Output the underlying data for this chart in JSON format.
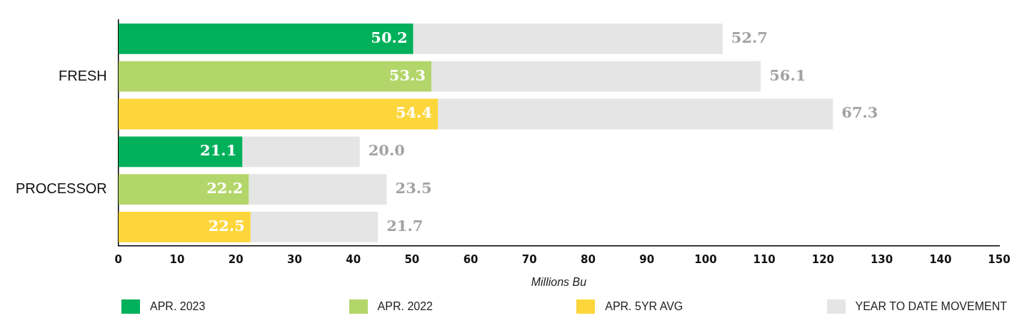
{
  "chart_data": {
    "type": "bar",
    "orientation": "horizontal",
    "stacked": true,
    "categories": [
      null,
      "FRESH",
      null,
      null,
      "PROCESSOR",
      null
    ],
    "series": [
      {
        "name": "APR. 2023",
        "color": "#00b05a",
        "values": [
          50.2,
          null,
          null,
          21.1,
          null,
          null
        ],
        "value_labels": [
          "50.2",
          null,
          null,
          "21.1",
          null,
          null
        ]
      },
      {
        "name": "APR. 2022",
        "color": "#b3d66a",
        "values": [
          null,
          53.3,
          null,
          null,
          22.2,
          null
        ],
        "value_labels": [
          null,
          "53.3",
          null,
          null,
          "22.2",
          null
        ]
      },
      {
        "name": "APR. 5YR AVG",
        "color": "#fdd63b",
        "values": [
          null,
          null,
          54.4,
          null,
          null,
          22.5
        ],
        "value_labels": [
          null,
          null,
          "54.4",
          null,
          null,
          "22.5"
        ]
      },
      {
        "name": "YEAR TO DATE MOVEMENT",
        "color": "#e5e5e6",
        "values": [
          52.7,
          56.1,
          67.3,
          20.0,
          23.5,
          21.7
        ],
        "value_labels": [
          "52.7",
          "56.1",
          "67.3",
          "20.0",
          "23.5",
          "21.7"
        ]
      }
    ],
    "xlim": [
      0,
      150
    ],
    "xticks": [
      0,
      10,
      20,
      30,
      40,
      50,
      60,
      70,
      80,
      90,
      100,
      110,
      120,
      130,
      140,
      150
    ],
    "xlabel": "Millions Bu",
    "grid": false,
    "legend": "bottom"
  }
}
